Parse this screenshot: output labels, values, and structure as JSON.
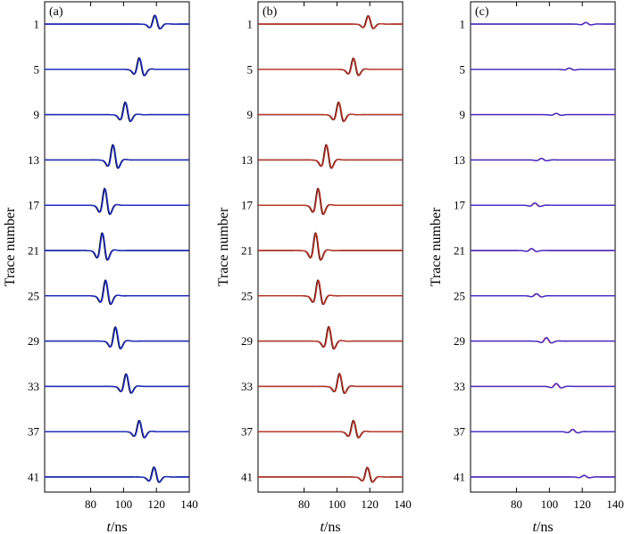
{
  "figure": {
    "panel_count": 3
  },
  "chart_data": [
    {
      "type": "line",
      "panel_label": "(a)",
      "xlabel_italic": "t",
      "xlabel_unit": "/ns",
      "ylabel": "Trace number",
      "xlim": [
        52,
        140
      ],
      "xticks": [
        80,
        100,
        120,
        140
      ],
      "trace_numbers": [
        1,
        5,
        9,
        13,
        17,
        21,
        25,
        29,
        33,
        37,
        41
      ],
      "arrival_times_ns": [
        119,
        109.5,
        101,
        93.5,
        88.5,
        87,
        89,
        95,
        101.5,
        109.5,
        118.5
      ],
      "relative_amplitude": [
        0.55,
        0.72,
        0.78,
        0.95,
        1.05,
        1.1,
        0.98,
        0.88,
        0.78,
        0.7,
        0.62
      ],
      "series": [
        {
          "name": "",
          "color": "#000000",
          "role": "base"
        },
        {
          "name": "",
          "color": "#1f2fc8",
          "role": "overlay"
        }
      ],
      "grid": false
    },
    {
      "type": "line",
      "panel_label": "(b)",
      "xlabel_italic": "t",
      "xlabel_unit": "/ns",
      "ylabel": "Trace number",
      "xlim": [
        52,
        140
      ],
      "xticks": [
        80,
        100,
        120,
        140
      ],
      "trace_numbers": [
        1,
        5,
        9,
        13,
        17,
        21,
        25,
        29,
        33,
        37,
        41
      ],
      "arrival_times_ns": [
        119,
        110,
        101,
        93.5,
        88.5,
        87,
        88.5,
        95,
        101.5,
        110,
        118.5
      ],
      "relative_amplitude": [
        0.52,
        0.7,
        0.78,
        0.95,
        1.05,
        1.1,
        0.98,
        0.9,
        0.8,
        0.7,
        0.6
      ],
      "series": [
        {
          "name": "",
          "color": "#2a0000",
          "role": "base"
        },
        {
          "name": "",
          "color": "#c0392b",
          "role": "overlay"
        }
      ],
      "grid": false
    },
    {
      "type": "line",
      "panel_label": "(c)",
      "xlabel_italic": "t",
      "xlabel_unit": "/ns",
      "ylabel": "Trace number",
      "xlim": [
        52,
        140
      ],
      "xticks": [
        80,
        100,
        120,
        140
      ],
      "trace_numbers": [
        1,
        5,
        9,
        13,
        17,
        21,
        25,
        29,
        33,
        37,
        41
      ],
      "arrival_times_ns": [
        122,
        112,
        104,
        95,
        91,
        89,
        92,
        98,
        104,
        114,
        121
      ],
      "relative_amplitude": [
        0.1,
        0.08,
        0.08,
        0.1,
        0.14,
        0.12,
        0.13,
        0.22,
        0.18,
        0.14,
        0.1
      ],
      "series": [
        {
          "name": "",
          "color": "#ff3a3a",
          "role": "base"
        },
        {
          "name": "",
          "color": "#3a2fd0",
          "role": "overlay"
        }
      ],
      "grid": false
    }
  ]
}
